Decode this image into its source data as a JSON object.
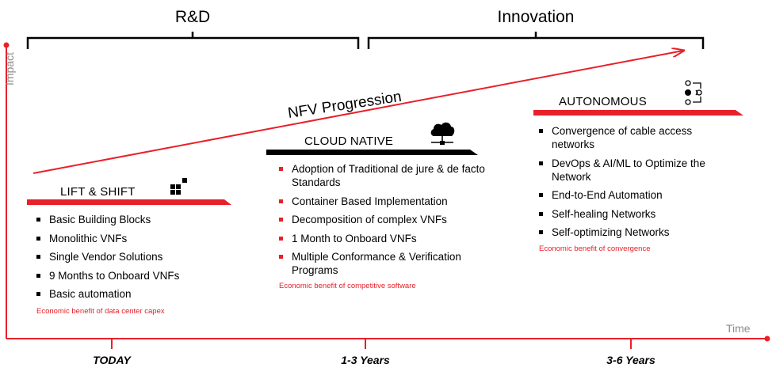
{
  "phases": {
    "rnd": "R&D",
    "innovation": "Innovation"
  },
  "axes": {
    "y_label": "Impact",
    "x_label": "Time"
  },
  "progression_label": "NFV Progression",
  "timeline": [
    "TODAY",
    "1-3 Years",
    "3-6 Years"
  ],
  "stages": {
    "lift_shift": {
      "title": "LIFT & SHIFT",
      "icon": "blocks-icon",
      "bar_color": "#e8202a",
      "items": [
        "Basic Building Blocks",
        "Monolithic VNFs",
        "Single Vendor Solutions",
        "9 Months to Onboard VNFs",
        "Basic automation"
      ],
      "benefit": "Economic benefit of data center capex"
    },
    "cloud_native": {
      "title": "CLOUD NATIVE",
      "icon": "cloud-network-icon",
      "bar_color": "#000000",
      "items": [
        "Adoption of Traditional de jure & de facto Standards",
        "Container Based Implementation",
        "Decomposition of complex VNFs",
        "1 Month to Onboard VNFs",
        "Multiple Conformance & Verification Programs"
      ],
      "benefit": "Economic benefit of competitive software"
    },
    "autonomous": {
      "title": "AUTONOMOUS",
      "icon": "workflow-icon",
      "bar_color": "#e8202a",
      "items": [
        "Convergence of cable access networks",
        "DevOps & AI/ML to Optimize the Network",
        "End-to-End Automation",
        "Self-healing Networks",
        "Self-optimizing Networks"
      ],
      "benefit": "Economic benefit of convergence"
    }
  },
  "colors": {
    "accent": "#e8202a",
    "axis_label": "#8c8c8c",
    "text": "#000000"
  }
}
